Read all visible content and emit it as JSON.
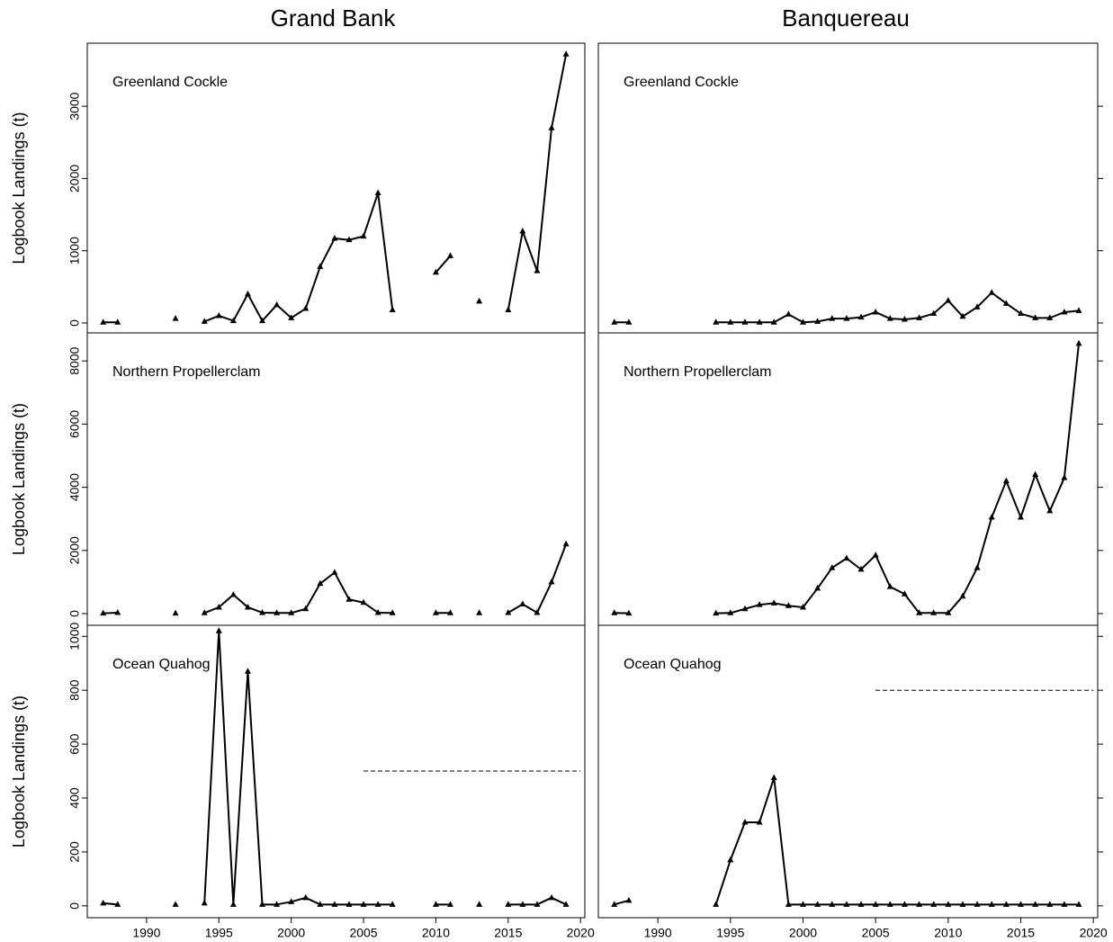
{
  "column_titles": [
    "Grand Bank",
    "Banquereau"
  ],
  "chart_data": [
    {
      "type": "line",
      "title": "Greenland Cockle",
      "ylabel": "Logbook Landings (t)",
      "x": [
        1987,
        1988,
        1989,
        1990,
        1991,
        1992,
        1993,
        1994,
        1995,
        1996,
        1997,
        1998,
        1999,
        2000,
        2001,
        2002,
        2003,
        2004,
        2005,
        2006,
        2007,
        2008,
        2009,
        2010,
        2011,
        2012,
        2013,
        2014,
        2015,
        2016,
        2017,
        2018,
        2019
      ],
      "values": [
        10,
        10,
        null,
        null,
        null,
        60,
        null,
        20,
        100,
        30,
        400,
        30,
        250,
        70,
        200,
        780,
        1170,
        1150,
        1200,
        1800,
        180,
        null,
        null,
        700,
        930,
        null,
        300,
        null,
        180,
        1270,
        720,
        2700,
        3720
      ],
      "color": "#000000",
      "xlim": [
        1985.9,
        2020.3
      ],
      "ylim": [
        -137,
        3873
      ],
      "yticks": [
        0,
        1000,
        2000,
        3000
      ]
    },
    {
      "type": "line",
      "title": "Greenland Cockle",
      "x": [
        1987,
        1988,
        1989,
        1990,
        1991,
        1992,
        1993,
        1994,
        1995,
        1996,
        1997,
        1998,
        1999,
        2000,
        2001,
        2002,
        2003,
        2004,
        2005,
        2006,
        2007,
        2008,
        2009,
        2010,
        2011,
        2012,
        2013,
        2014,
        2015,
        2016,
        2017,
        2018,
        2019
      ],
      "values": [
        10,
        10,
        null,
        null,
        null,
        null,
        null,
        10,
        10,
        10,
        10,
        10,
        120,
        10,
        20,
        60,
        60,
        80,
        150,
        60,
        50,
        70,
        130,
        310,
        90,
        220,
        420,
        270,
        130,
        70,
        70,
        150,
        170
      ],
      "color": "#000000",
      "xlim": [
        1985.9,
        2020.3
      ],
      "ylim": [
        -137,
        3873
      ],
      "yticks": [
        0,
        1000,
        2000,
        3000
      ]
    },
    {
      "type": "line",
      "title": "Northern Propellerclam",
      "ylabel": "Logbook Landings (t)",
      "x": [
        1987,
        1988,
        1989,
        1990,
        1991,
        1992,
        1993,
        1994,
        1995,
        1996,
        1997,
        1998,
        1999,
        2000,
        2001,
        2002,
        2003,
        2004,
        2005,
        2006,
        2007,
        2008,
        2009,
        2010,
        2011,
        2012,
        2013,
        2014,
        2015,
        2016,
        2017,
        2018,
        2019
      ],
      "values": [
        10,
        30,
        null,
        null,
        null,
        10,
        null,
        20,
        200,
        600,
        200,
        30,
        20,
        20,
        150,
        950,
        1300,
        450,
        350,
        30,
        20,
        null,
        null,
        20,
        20,
        null,
        20,
        null,
        30,
        300,
        30,
        1000,
        2200
      ],
      "color": "#000000",
      "xlim": [
        1985.9,
        2020.3
      ],
      "ylim": [
        -370,
        8888
      ],
      "yticks": [
        0,
        2000,
        4000,
        6000,
        8000
      ]
    },
    {
      "type": "line",
      "title": "Northern Propellerclam",
      "x": [
        1987,
        1988,
        1989,
        1990,
        1991,
        1992,
        1993,
        1994,
        1995,
        1996,
        1997,
        1998,
        1999,
        2000,
        2001,
        2002,
        2003,
        2004,
        2005,
        2006,
        2007,
        2008,
        2009,
        2010,
        2011,
        2012,
        2013,
        2014,
        2015,
        2016,
        2017,
        2018,
        2019
      ],
      "values": [
        20,
        10,
        null,
        null,
        null,
        null,
        null,
        10,
        20,
        150,
        280,
        330,
        250,
        200,
        800,
        1450,
        1750,
        1400,
        1850,
        850,
        620,
        20,
        20,
        20,
        550,
        1450,
        3050,
        4200,
        3050,
        4400,
        3250,
        4300,
        8550
      ],
      "color": "#000000",
      "xlim": [
        1985.9,
        2020.3
      ],
      "ylim": [
        -370,
        8888
      ],
      "yticks": [
        0,
        2000,
        4000,
        6000,
        8000
      ]
    },
    {
      "type": "line",
      "title": "Ocean Quahog",
      "ylabel": "Logbook Landings (t)",
      "x": [
        1987,
        1988,
        1989,
        1990,
        1991,
        1992,
        1993,
        1994,
        1995,
        1996,
        1997,
        1998,
        1999,
        2000,
        2001,
        2002,
        2003,
        2004,
        2005,
        2006,
        2007,
        2008,
        2009,
        2010,
        2011,
        2012,
        2013,
        2014,
        2015,
        2016,
        2017,
        2018,
        2019
      ],
      "values": [
        10,
        5,
        null,
        null,
        null,
        5,
        null,
        10,
        1020,
        5,
        870,
        5,
        5,
        15,
        30,
        5,
        5,
        5,
        5,
        5,
        5,
        null,
        null,
        5,
        5,
        null,
        5,
        null,
        5,
        5,
        5,
        30,
        5
      ],
      "color": "#000000",
      "xlim": [
        1985.9,
        2020.3
      ],
      "ylim": [
        -44,
        1041
      ],
      "yticks": [
        0,
        200,
        400,
        600,
        800,
        1000
      ],
      "xticks": [
        1990,
        1995,
        2000,
        2005,
        2010,
        2015,
        2020
      ],
      "reference_line": {
        "y": 500,
        "x": [
          2005,
          2020
        ]
      }
    },
    {
      "type": "line",
      "title": "Ocean Quahog",
      "x": [
        1987,
        1988,
        1989,
        1990,
        1991,
        1992,
        1993,
        1994,
        1995,
        1996,
        1997,
        1998,
        1999,
        2000,
        2001,
        2002,
        2003,
        2004,
        2005,
        2006,
        2007,
        2008,
        2009,
        2010,
        2011,
        2012,
        2013,
        2014,
        2015,
        2016,
        2017,
        2018,
        2019
      ],
      "values": [
        5,
        20,
        null,
        null,
        null,
        null,
        null,
        5,
        170,
        310,
        310,
        475,
        5,
        5,
        5,
        5,
        5,
        5,
        5,
        5,
        5,
        5,
        5,
        5,
        5,
        5,
        5,
        5,
        5,
        5,
        5,
        5,
        5
      ],
      "color": "#000000",
      "xlim": [
        1985.9,
        2020.3
      ],
      "ylim": [
        -44,
        1041
      ],
      "yticks": [
        0,
        200,
        400,
        600,
        800,
        1000
      ],
      "xticks": [
        1990,
        1995,
        2000,
        2005,
        2010,
        2015,
        2020
      ],
      "reference_line": {
        "y": 800,
        "x": [
          2005,
          2020
        ]
      }
    }
  ]
}
